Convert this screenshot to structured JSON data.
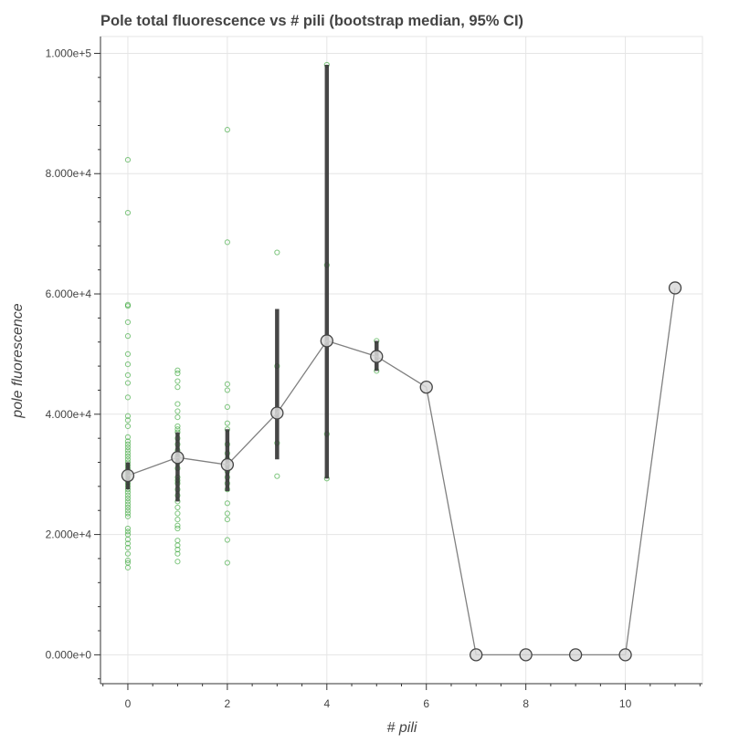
{
  "chart_data": {
    "type": "scatter",
    "title": "Pole total fluorescence vs # pili (bootstrap median, 95% CI)",
    "xlabel": "# pili",
    "ylabel": "pole fluorescence",
    "xlim": [
      -0.55,
      11.55
    ],
    "ylim": [
      -4800,
      102800
    ],
    "x_ticks": [
      {
        "value": 0,
        "label": "0"
      },
      {
        "value": 2,
        "label": "2"
      },
      {
        "value": 4,
        "label": "4"
      },
      {
        "value": 6,
        "label": "6"
      },
      {
        "value": 8,
        "label": "8"
      },
      {
        "value": 10,
        "label": "10"
      }
    ],
    "y_ticks": [
      {
        "value": 0,
        "label": "0.000e+0"
      },
      {
        "value": 20000,
        "label": "2.000e+4"
      },
      {
        "value": 40000,
        "label": "4.000e+4"
      },
      {
        "value": 60000,
        "label": "6.000e+4"
      },
      {
        "value": 80000,
        "label": "8.000e+4"
      },
      {
        "value": 100000,
        "label": "1.000e+5"
      }
    ],
    "grid": true,
    "colors": {
      "raw_points": "#2ca02c",
      "median_line": "#808080",
      "median_marker_fill": "#d9d9d9",
      "median_marker_stroke": "#444444",
      "error_bar": "#333333",
      "grid": "#e5e5e5",
      "axis": "#333333",
      "title": "#444444"
    },
    "series": [
      {
        "kind": "raw",
        "points": [
          {
            "x": 0,
            "y": 82300
          },
          {
            "x": 0,
            "y": 73500
          },
          {
            "x": 0,
            "y": 58200
          },
          {
            "x": 0,
            "y": 58000
          },
          {
            "x": 0,
            "y": 55300
          },
          {
            "x": 0,
            "y": 53000
          },
          {
            "x": 0,
            "y": 50000
          },
          {
            "x": 0,
            "y": 48300
          },
          {
            "x": 0,
            "y": 46500
          },
          {
            "x": 0,
            "y": 45200
          },
          {
            "x": 0,
            "y": 42800
          },
          {
            "x": 0,
            "y": 39700
          },
          {
            "x": 0,
            "y": 39000
          },
          {
            "x": 0,
            "y": 38000
          },
          {
            "x": 0,
            "y": 36200
          },
          {
            "x": 0,
            "y": 35500
          },
          {
            "x": 0,
            "y": 35000
          },
          {
            "x": 0,
            "y": 34500
          },
          {
            "x": 0,
            "y": 34000
          },
          {
            "x": 0,
            "y": 33500
          },
          {
            "x": 0,
            "y": 33000
          },
          {
            "x": 0,
            "y": 32500
          },
          {
            "x": 0,
            "y": 32000
          },
          {
            "x": 0,
            "y": 31500
          },
          {
            "x": 0,
            "y": 31000
          },
          {
            "x": 0,
            "y": 30500
          },
          {
            "x": 0,
            "y": 30000
          },
          {
            "x": 0,
            "y": 29500
          },
          {
            "x": 0,
            "y": 29000
          },
          {
            "x": 0,
            "y": 28500
          },
          {
            "x": 0,
            "y": 28000
          },
          {
            "x": 0,
            "y": 27500
          },
          {
            "x": 0,
            "y": 27000
          },
          {
            "x": 0,
            "y": 26500
          },
          {
            "x": 0,
            "y": 26000
          },
          {
            "x": 0,
            "y": 25500
          },
          {
            "x": 0,
            "y": 25000
          },
          {
            "x": 0,
            "y": 24500
          },
          {
            "x": 0,
            "y": 24000
          },
          {
            "x": 0,
            "y": 23500
          },
          {
            "x": 0,
            "y": 23000
          },
          {
            "x": 0,
            "y": 21000
          },
          {
            "x": 0,
            "y": 20500
          },
          {
            "x": 0,
            "y": 20000
          },
          {
            "x": 0,
            "y": 19200
          },
          {
            "x": 0,
            "y": 18500
          },
          {
            "x": 0,
            "y": 17800
          },
          {
            "x": 0,
            "y": 16800
          },
          {
            "x": 0,
            "y": 15700
          },
          {
            "x": 0,
            "y": 15300
          },
          {
            "x": 0,
            "y": 14500
          },
          {
            "x": 1,
            "y": 47300
          },
          {
            "x": 1,
            "y": 46800
          },
          {
            "x": 1,
            "y": 45500
          },
          {
            "x": 1,
            "y": 44500
          },
          {
            "x": 1,
            "y": 41700
          },
          {
            "x": 1,
            "y": 40500
          },
          {
            "x": 1,
            "y": 39500
          },
          {
            "x": 1,
            "y": 38000
          },
          {
            "x": 1,
            "y": 37500
          },
          {
            "x": 1,
            "y": 37000
          },
          {
            "x": 1,
            "y": 36000
          },
          {
            "x": 1,
            "y": 35000
          },
          {
            "x": 1,
            "y": 34000
          },
          {
            "x": 1,
            "y": 33000
          },
          {
            "x": 1,
            "y": 32000
          },
          {
            "x": 1,
            "y": 31000
          },
          {
            "x": 1,
            "y": 29500
          },
          {
            "x": 1,
            "y": 29000
          },
          {
            "x": 1,
            "y": 28500
          },
          {
            "x": 1,
            "y": 27500
          },
          {
            "x": 1,
            "y": 26500
          },
          {
            "x": 1,
            "y": 25500
          },
          {
            "x": 1,
            "y": 24500
          },
          {
            "x": 1,
            "y": 23500
          },
          {
            "x": 1,
            "y": 22500
          },
          {
            "x": 1,
            "y": 21500
          },
          {
            "x": 1,
            "y": 21000
          },
          {
            "x": 1,
            "y": 19000
          },
          {
            "x": 1,
            "y": 18200
          },
          {
            "x": 1,
            "y": 17500
          },
          {
            "x": 1,
            "y": 16800
          },
          {
            "x": 1,
            "y": 15500
          },
          {
            "x": 2,
            "y": 87300
          },
          {
            "x": 2,
            "y": 68600
          },
          {
            "x": 2,
            "y": 45000
          },
          {
            "x": 2,
            "y": 44000
          },
          {
            "x": 2,
            "y": 41200
          },
          {
            "x": 2,
            "y": 38500
          },
          {
            "x": 2,
            "y": 37500
          },
          {
            "x": 2,
            "y": 35000
          },
          {
            "x": 2,
            "y": 33500
          },
          {
            "x": 2,
            "y": 32500
          },
          {
            "x": 2,
            "y": 31500
          },
          {
            "x": 2,
            "y": 30500
          },
          {
            "x": 2,
            "y": 29500
          },
          {
            "x": 2,
            "y": 28500
          },
          {
            "x": 2,
            "y": 27500
          },
          {
            "x": 2,
            "y": 25200
          },
          {
            "x": 2,
            "y": 23500
          },
          {
            "x": 2,
            "y": 22500
          },
          {
            "x": 2,
            "y": 19100
          },
          {
            "x": 2,
            "y": 15300
          },
          {
            "x": 3,
            "y": 66900
          },
          {
            "x": 3,
            "y": 48000
          },
          {
            "x": 3,
            "y": 35200
          },
          {
            "x": 3,
            "y": 29700
          },
          {
            "x": 4,
            "y": 98100
          },
          {
            "x": 4,
            "y": 64800
          },
          {
            "x": 4,
            "y": 36700
          },
          {
            "x": 4,
            "y": 29300
          },
          {
            "x": 5,
            "y": 52200
          },
          {
            "x": 5,
            "y": 47200
          }
        ]
      },
      {
        "kind": "median",
        "points": [
          {
            "x": 0,
            "y": 29800,
            "ci": [
              27500,
              32000
            ]
          },
          {
            "x": 1,
            "y": 32800,
            "ci": [
              25500,
              37000
            ]
          },
          {
            "x": 2,
            "y": 31600,
            "ci": [
              27200,
              37500
            ]
          },
          {
            "x": 3,
            "y": 40200,
            "ci": [
              32500,
              57500
            ]
          },
          {
            "x": 4,
            "y": 52200,
            "ci": [
              29300,
              98100
            ]
          },
          {
            "x": 5,
            "y": 49600,
            "ci": [
              47200,
              52200
            ]
          },
          {
            "x": 6,
            "y": 44500,
            "ci": null
          },
          {
            "x": 7,
            "y": 0,
            "ci": null
          },
          {
            "x": 8,
            "y": 0,
            "ci": null
          },
          {
            "x": 9,
            "y": 0,
            "ci": null
          },
          {
            "x": 10,
            "y": 0,
            "ci": null
          },
          {
            "x": 11,
            "y": 61000,
            "ci": null
          }
        ]
      }
    ]
  }
}
